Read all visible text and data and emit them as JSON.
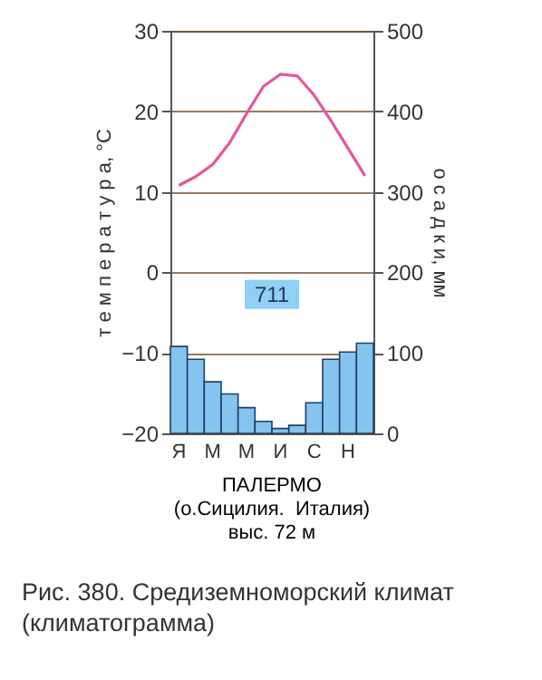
{
  "chart_data": {
    "type": "bar",
    "ylabel": "т е м п е р а т у р а, °C",
    "y2label": "о с а д к и, мм",
    "categories": [
      "Я",
      null,
      "М",
      null,
      "М",
      null,
      "И",
      null,
      "С",
      null,
      "Н",
      null
    ],
    "series": [
      {
        "axis": "y2",
        "color": "#84c4ee",
        "values": [
          108,
          92,
          64,
          49,
          32,
          15,
          6,
          10,
          38,
          92,
          101,
          112
        ]
      },
      {
        "type": "line",
        "axis": "y",
        "color": "#e6569c",
        "values": [
          10.8,
          11.9,
          13.4,
          16.1,
          19.7,
          23.1,
          24.6,
          24.4,
          22.0,
          18.8,
          15.4,
          12.0
        ]
      }
    ],
    "ylim": [
      -20,
      30
    ],
    "yticks": [
      -20,
      -10,
      0,
      10,
      20,
      30
    ],
    "y2lim": [
      0,
      500
    ],
    "y2ticks": [
      0,
      100,
      200,
      300,
      400,
      500
    ],
    "grid": "y",
    "annotations": [
      "711",
      "ПАЛЕРМО",
      "(о.Сицилия.  Италия)",
      "выс. 72 м",
      "Рис. 380. Средиземноморский климат (климатограмма)"
    ]
  }
}
